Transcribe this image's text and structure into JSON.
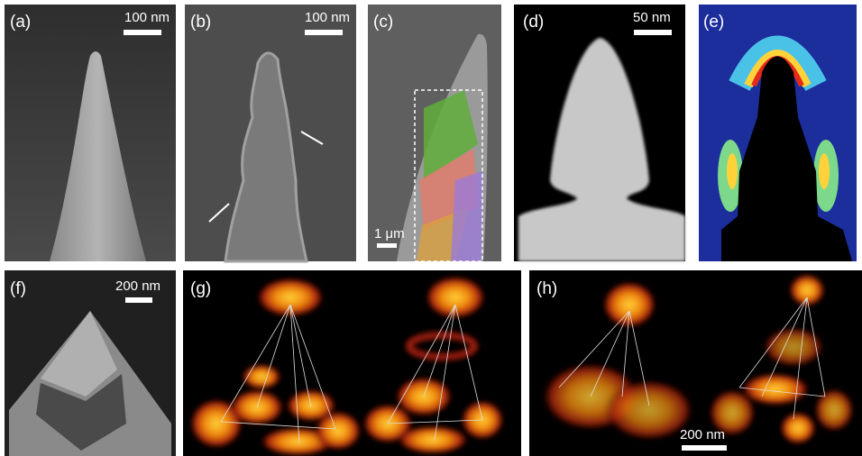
{
  "panels": [
    {
      "label": "(a)",
      "scale_bar": "100 nm"
    },
    {
      "label": "(b)",
      "scale_bar": "100 nm"
    },
    {
      "label": "(c)",
      "scale_bar": "1 μm"
    },
    {
      "label": "(d)",
      "scale_bar": "50 nm"
    },
    {
      "label": "(e)"
    },
    {
      "label": "(f)",
      "scale_bar": "200 nm"
    },
    {
      "label": "(g)"
    },
    {
      "label": "(h)",
      "scale_bar": "200 nm"
    }
  ]
}
